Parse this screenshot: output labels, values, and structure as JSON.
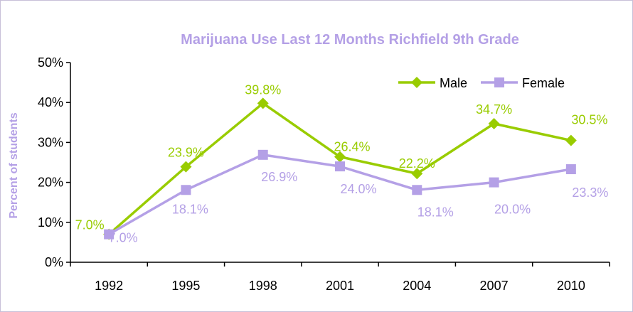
{
  "chart_data": {
    "type": "line",
    "title": "Marijuana Use Last 12 Months Richfield 9th Grade",
    "ylabel": "Percent of students",
    "xlabel": "",
    "categories": [
      "1992",
      "1995",
      "1998",
      "2001",
      "2004",
      "2007",
      "2010"
    ],
    "y_ticks": [
      "0%",
      "10%",
      "20%",
      "30%",
      "40%",
      "50%"
    ],
    "ylim": [
      0,
      50
    ],
    "grid": false,
    "legend_position": "top-right",
    "series": [
      {
        "name": "Male",
        "color": "#99cc00",
        "marker": "diamond",
        "values": [
          7.0,
          23.9,
          39.8,
          26.4,
          22.2,
          34.7,
          30.5
        ],
        "labels": [
          "7.0%",
          "23.9%",
          "39.8%",
          "26.4%",
          "22.2%",
          "34.7%",
          "30.5%"
        ]
      },
      {
        "name": "Female",
        "color": "#b4a0e6",
        "marker": "square",
        "values": [
          7.0,
          18.1,
          26.9,
          24.0,
          18.1,
          20.0,
          23.3
        ],
        "labels": [
          "7.0%",
          "18.1%",
          "26.9%",
          "24.0%",
          "18.1%",
          "20.0%",
          "23.3%"
        ]
      }
    ],
    "title_color": "#b4a0e6",
    "ylabel_color": "#b4a0e6"
  }
}
